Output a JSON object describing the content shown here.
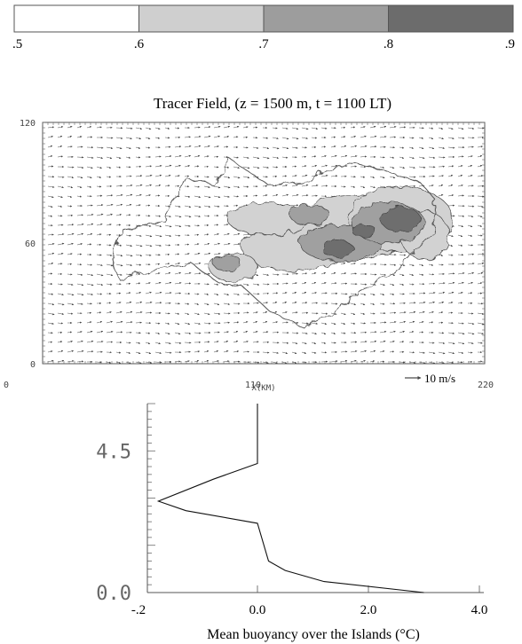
{
  "chart_data": [
    {
      "type": "other",
      "kind": "colorbar",
      "ticks": [
        ".5",
        ".6",
        ".7",
        ".8",
        ".9"
      ],
      "levels": [
        0.5,
        0.6,
        0.7,
        0.8,
        0.9
      ],
      "fills": [
        "#ffffff",
        "#cfcfcf",
        "#9d9d9d",
        "#6c6c6c"
      ]
    },
    {
      "type": "heatmap",
      "kind": "shaded contour field with wind vectors",
      "title": "Tracer Field,  (z = 1500 m, t = 1100 LT)",
      "xlabel": "X(KM)",
      "x_ticks": [
        "0",
        "110",
        "220"
      ],
      "y_ticks": [
        "0",
        "60",
        "120"
      ],
      "xlim": [
        0,
        220
      ],
      "ylim": [
        0,
        120
      ],
      "vector_key": "10 m/s",
      "wind": {
        "u": 10,
        "v": 0.5
      },
      "shading_levels": [
        0.6,
        0.7,
        0.8
      ],
      "shading_colors": [
        "#d2d2d2",
        "#a0a0a0",
        "#6e6e6e"
      ],
      "island_outline": [
        [
          40,
          67
        ],
        [
          60,
          71
        ],
        [
          72,
          92
        ],
        [
          85,
          89
        ],
        [
          93,
          102
        ],
        [
          112,
          89
        ],
        [
          130,
          90
        ],
        [
          140,
          96
        ],
        [
          155,
          100
        ],
        [
          170,
          96
        ],
        [
          188,
          90
        ],
        [
          195,
          82
        ],
        [
          195,
          65
        ],
        [
          185,
          55
        ],
        [
          172,
          44
        ],
        [
          158,
          36
        ],
        [
          145,
          25
        ],
        [
          130,
          18
        ],
        [
          112,
          27
        ],
        [
          100,
          38
        ],
        [
          88,
          40
        ],
        [
          74,
          50
        ],
        [
          54,
          46
        ],
        [
          38,
          42
        ],
        [
          34,
          53
        ]
      ],
      "tracer_blobs": [
        {
          "x": 155,
          "y": 68,
          "rx": 30,
          "ry": 16,
          "level": 0.6
        },
        {
          "x": 178,
          "y": 72,
          "rx": 26,
          "ry": 16,
          "level": 0.6
        },
        {
          "x": 125,
          "y": 58,
          "rx": 26,
          "ry": 12,
          "level": 0.6
        },
        {
          "x": 112,
          "y": 72,
          "rx": 20,
          "ry": 8,
          "level": 0.6
        },
        {
          "x": 95,
          "y": 48,
          "rx": 12,
          "ry": 7,
          "level": 0.6
        },
        {
          "x": 190,
          "y": 64,
          "rx": 12,
          "ry": 12,
          "level": 0.6
        },
        {
          "x": 148,
          "y": 60,
          "rx": 20,
          "ry": 9,
          "level": 0.7
        },
        {
          "x": 172,
          "y": 70,
          "rx": 18,
          "ry": 10,
          "level": 0.7
        },
        {
          "x": 133,
          "y": 74,
          "rx": 10,
          "ry": 5,
          "level": 0.7
        },
        {
          "x": 92,
          "y": 50,
          "rx": 7,
          "ry": 4,
          "level": 0.7
        },
        {
          "x": 178,
          "y": 72,
          "rx": 10,
          "ry": 6,
          "level": 0.8
        },
        {
          "x": 147,
          "y": 57,
          "rx": 8,
          "ry": 4,
          "level": 0.8
        },
        {
          "x": 160,
          "y": 66,
          "rx": 6,
          "ry": 3,
          "level": 0.8
        }
      ]
    },
    {
      "type": "line",
      "xlabel": "Mean buoyancy over the Islands (°C)",
      "x_ticks": [
        "-.2",
        "0.0",
        "2.0",
        "4.0"
      ],
      "y_ticks": [
        "0.0",
        "4.5"
      ],
      "xlim": [
        -2,
        4
      ],
      "ylim": [
        0,
        6
      ],
      "x": [
        0.0,
        0.0,
        -0.8,
        -1.8,
        -1.3,
        0.0,
        0.2,
        0.5,
        1.2,
        3.0
      ],
      "y": [
        6.0,
        4.1,
        3.6,
        2.9,
        2.6,
        2.2,
        1.0,
        0.7,
        0.35,
        0.0
      ]
    }
  ]
}
